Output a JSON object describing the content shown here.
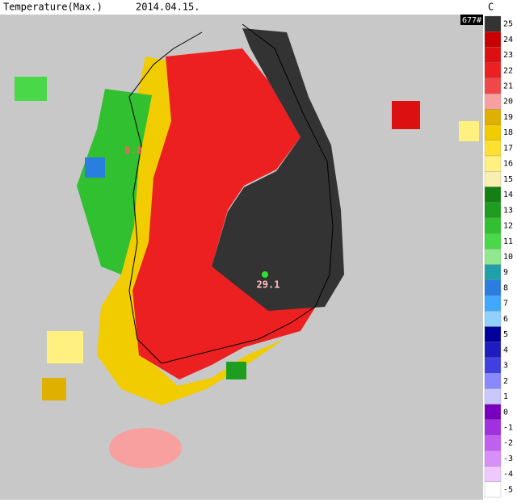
{
  "header": {
    "title": "Temperature(Max.)",
    "date": "2014.04.15.",
    "unit": "C",
    "count": "677#"
  },
  "labels": [
    {
      "text": "8.8"
    },
    {
      "text": "29.1"
    }
  ],
  "legend": {
    "ticks": [
      25,
      24,
      23,
      22,
      21,
      20,
      19,
      18,
      17,
      16,
      15,
      14,
      13,
      12,
      11,
      10,
      9,
      8,
      7,
      6,
      5,
      4,
      3,
      2,
      1,
      0,
      -1,
      -2,
      -3,
      -4,
      -5
    ],
    "colors": [
      "#333333",
      "#c80000",
      "#dc1010",
      "#ec2020",
      "#f04848",
      "#f8a0a0",
      "#e0b000",
      "#f0cc00",
      "#ffe030",
      "#fff080",
      "#f8f0b0",
      "#148014",
      "#1e9e1e",
      "#30c030",
      "#48d848",
      "#90e890",
      "#20a0a8",
      "#2a7ee0",
      "#40a8ff",
      "#90d0ff",
      "#00009c",
      "#1c1cc0",
      "#4040e0",
      "#8888ff",
      "#c8c8ff",
      "#7a00c0",
      "#a030e0",
      "#c060f0",
      "#d890f8",
      "#f0c8ff",
      "#ffffff"
    ]
  }
}
